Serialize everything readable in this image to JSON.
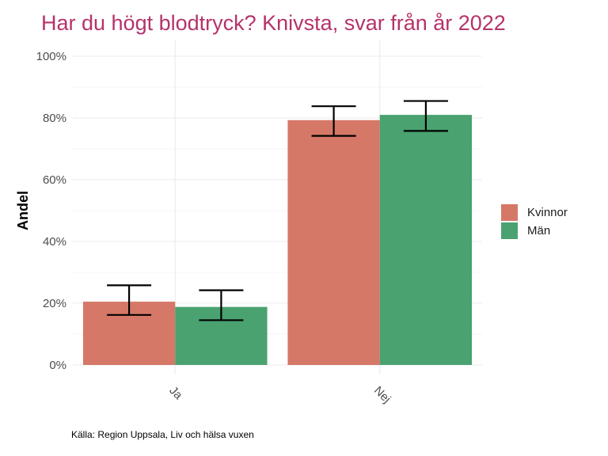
{
  "colors": {
    "title": "#b5336b",
    "kvinnor": "#d57867",
    "man": "#4aa271",
    "grid": "#ebebeb",
    "errorbar": "#000000"
  },
  "chart_data": {
    "type": "bar",
    "title": "Har du högt blodtryck? Knivsta, svar från år 2022",
    "xlabel": "",
    "ylabel": "Andel",
    "ylim": [
      0,
      100
    ],
    "y_ticks": [
      "0%",
      "20%",
      "40%",
      "60%",
      "80%",
      "100%"
    ],
    "categories": [
      "Ja",
      "Nej"
    ],
    "series": [
      {
        "name": "Kvinnor",
        "values": [
          20.5,
          79.3
        ],
        "ci_low": [
          16.2,
          74.2
        ],
        "ci_high": [
          25.8,
          83.8
        ]
      },
      {
        "name": "Män",
        "values": [
          18.8,
          81.0
        ],
        "ci_low": [
          14.5,
          75.8
        ],
        "ci_high": [
          24.2,
          85.5
        ]
      }
    ],
    "legend_position": "right",
    "grid": true,
    "caption": "Källa: Region Uppsala, Liv och hälsa vuxen"
  }
}
